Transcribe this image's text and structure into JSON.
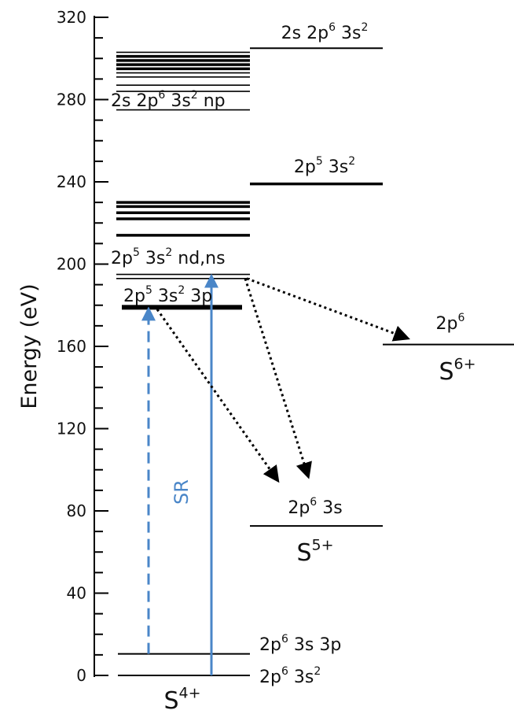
{
  "axis": {
    "label": "Energy (eV)",
    "range": [
      0,
      320
    ],
    "ticks": [
      0,
      40,
      80,
      120,
      160,
      200,
      240,
      280,
      320
    ]
  },
  "ions": {
    "s4": {
      "base": "S",
      "charge": "4+"
    },
    "s5": {
      "base": "S",
      "charge": "5+"
    },
    "s6": {
      "base": "S",
      "charge": "6+"
    }
  },
  "excitation_label": "SR",
  "configs": {
    "s4_ground": [
      {
        "t": "2p"
      },
      {
        "t": "6",
        "sup": true
      },
      {
        "t": " 3s"
      },
      {
        "t": "2",
        "sup": true
      }
    ],
    "s4_excited": [
      {
        "t": "2p"
      },
      {
        "t": "6",
        "sup": true
      },
      {
        "t": " 3s 3p"
      }
    ],
    "resonance_3p": [
      {
        "t": "2p"
      },
      {
        "t": "5",
        "sup": true
      },
      {
        "t": " 3s"
      },
      {
        "t": "2",
        "sup": true
      },
      {
        "t": " 3p"
      }
    ],
    "rydberg_ndns": [
      {
        "t": "2p"
      },
      {
        "t": "5",
        "sup": true
      },
      {
        "t": " 3s"
      },
      {
        "t": "2",
        "sup": true
      },
      {
        "t": " nd,ns"
      }
    ],
    "rydberg_np": [
      {
        "t": "2s 2p"
      },
      {
        "t": "6",
        "sup": true
      },
      {
        "t": " 3s"
      },
      {
        "t": "2",
        "sup": true
      },
      {
        "t": " np"
      }
    ],
    "s5_ground": [
      {
        "t": "2p"
      },
      {
        "t": "6",
        "sup": true
      },
      {
        "t": " 3s"
      }
    ],
    "s5_2p_hole": [
      {
        "t": "2p"
      },
      {
        "t": "5",
        "sup": true
      },
      {
        "t": " 3s"
      },
      {
        "t": "2",
        "sup": true
      }
    ],
    "s5_2s_hole": [
      {
        "t": "2s 2p"
      },
      {
        "t": "6",
        "sup": true
      },
      {
        "t": " 3s"
      },
      {
        "t": "2",
        "sup": true
      }
    ],
    "s6_ground": [
      {
        "t": "2p"
      },
      {
        "t": "6",
        "sup": true
      }
    ]
  },
  "levels": {
    "s4_ground": 0,
    "s4_excited": 10.5,
    "s5_ground": 72.7,
    "s6_ground": 160.9,
    "s5_2p_hole": 239,
    "s5_2s_hole": 305,
    "resonance_3p": 179,
    "rydberg_thin": [
      193,
      195,
      275,
      284,
      287,
      291,
      293,
      303
    ],
    "rydberg_thick": [
      214,
      222,
      225,
      228,
      230,
      295,
      297,
      299,
      301
    ]
  },
  "transitions": {
    "sr_dashed": {
      "from": 10.5,
      "to": 178
    },
    "sr_solid": {
      "from": 0,
      "to": 194
    },
    "decay_to_s5_a": {
      "from": 178,
      "to": 95
    },
    "decay_to_s5_b": {
      "from": 193,
      "to": 97
    },
    "decay_to_s6": {
      "from": 193,
      "to": 164
    }
  },
  "colors": {
    "arrow_blue": "#4a86c8",
    "line": "#000000",
    "text": "#111111"
  }
}
